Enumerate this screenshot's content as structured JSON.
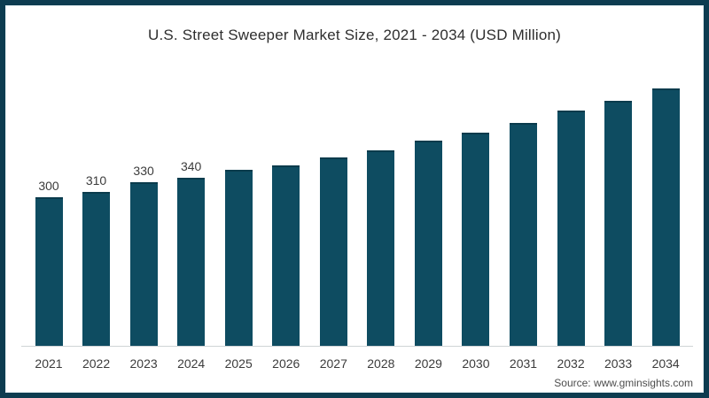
{
  "chart_data": {
    "type": "bar",
    "title": "U.S. Street Sweeper Market Size, 2021 - 2034 (USD Million)",
    "categories": [
      "2021",
      "2022",
      "2023",
      "2024",
      "2025",
      "2026",
      "2027",
      "2028",
      "2029",
      "2030",
      "2031",
      "2032",
      "2033",
      "2034"
    ],
    "values": [
      300,
      310,
      330,
      340,
      355,
      365,
      380,
      395,
      415,
      430,
      450,
      475,
      495,
      520
    ],
    "value_labels": [
      "300",
      "310",
      "330",
      "340",
      "",
      "",
      "",
      "",
      "",
      "",
      "",
      "",
      "",
      ""
    ],
    "xlabel": "",
    "ylabel": "",
    "ylim": [
      0,
      560
    ],
    "grid": false,
    "legend": "none",
    "bar_color": "#0e4c61",
    "frame_color": "#0d3c50",
    "source": "Source: www.gminsights.com"
  }
}
